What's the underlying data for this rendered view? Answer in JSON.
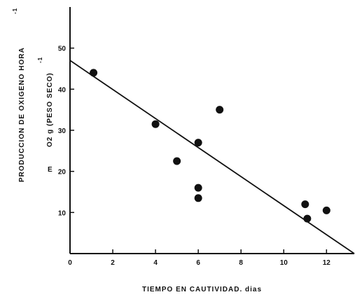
{
  "chart_data": {
    "type": "scatter",
    "title": "",
    "xlabel": "TIEMPO EN CAUTIVIDAD. dias",
    "ylabel_lines": [
      "PRODUCCION DE OXIGENO HORA",
      "O2 g (PESO SECO)",
      "E"
    ],
    "ylabel_superscript": "-1",
    "xlim": [
      0,
      13.3
    ],
    "ylim": [
      0,
      60
    ],
    "xticks": [
      0,
      2,
      4,
      6,
      8,
      10,
      12
    ],
    "yticks": [
      10,
      20,
      30,
      40,
      50
    ],
    "grid": false,
    "points": [
      {
        "x": 1.1,
        "y": 44
      },
      {
        "x": 4.0,
        "y": 31.5
      },
      {
        "x": 5.0,
        "y": 22.5
      },
      {
        "x": 6.0,
        "y": 27
      },
      {
        "x": 6.0,
        "y": 16
      },
      {
        "x": 6.0,
        "y": 13.5
      },
      {
        "x": 7.0,
        "y": 35
      },
      {
        "x": 11.0,
        "y": 12
      },
      {
        "x": 11.1,
        "y": 8.5
      },
      {
        "x": 12.0,
        "y": 10.5
      }
    ],
    "fit_line": {
      "x0": 0,
      "y0": 47,
      "x1": 13.3,
      "y1": 0
    },
    "colors": {
      "marks": "#111111",
      "axis": "#111111"
    }
  }
}
